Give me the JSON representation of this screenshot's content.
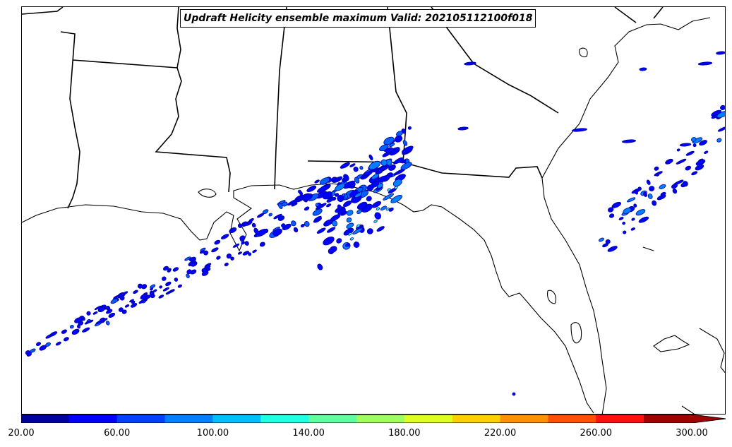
{
  "title": "Updraft Helicity ensemble maximum Valid: 202105112100f018",
  "colorbar": {
    "colors": [
      "#00009f",
      "#0000ff",
      "#0040ff",
      "#0080ff",
      "#00bfff",
      "#20ffdf",
      "#5fff9f",
      "#9fff5f",
      "#dfff20",
      "#ffd000",
      "#ff9000",
      "#ff5000",
      "#ff1010",
      "#a00000"
    ],
    "ticks": [
      "20.00",
      "60.00",
      "100.00",
      "140.00",
      "180.00",
      "220.00",
      "260.00",
      "300.00"
    ],
    "extend": "max"
  },
  "map": {
    "field": "updraft-helicity",
    "region": "US Gulf Coast and Florida",
    "coastline_color": "#000000",
    "border_color": "#000000"
  }
}
